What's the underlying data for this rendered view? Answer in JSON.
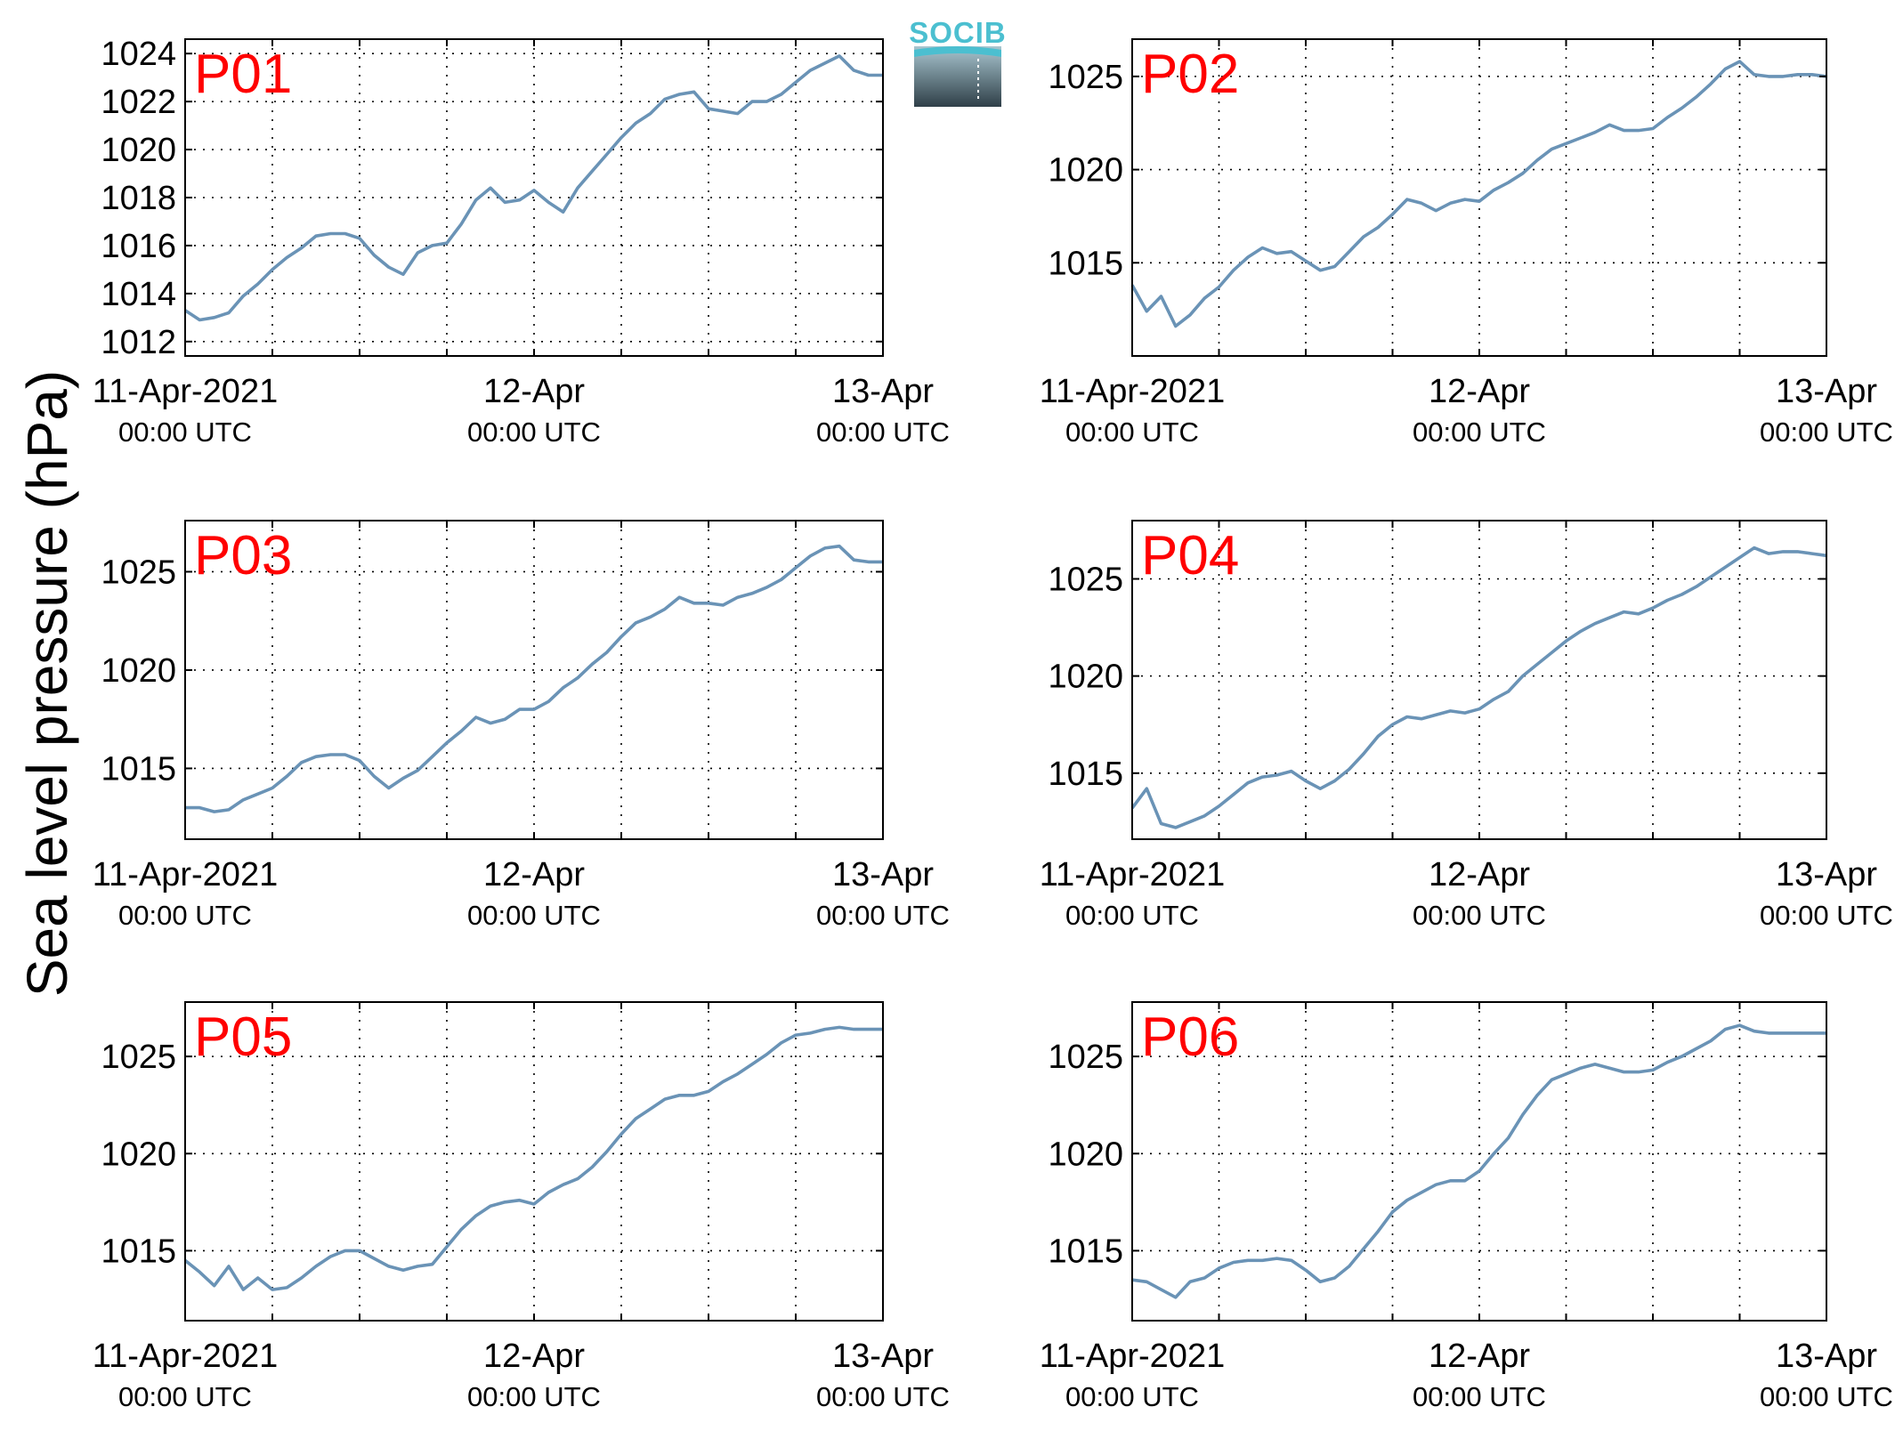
{
  "figure": {
    "ylabel": "Sea level pressure (hPa)",
    "logo_text": "SOCIB",
    "line_color": "#6a93b6",
    "label_color": "#ff0000"
  },
  "chart_data": [
    {
      "type": "line",
      "label": "P01",
      "xlim": [
        "11-Apr-2021 00:00",
        "13-Apr-2021 00:00"
      ],
      "xticks": [
        {
          "line1": "11-Apr-2021",
          "line2": "00:00 UTC"
        },
        {
          "line1": "12-Apr",
          "line2": "00:00 UTC"
        },
        {
          "line1": "13-Apr",
          "line2": "00:00 UTC"
        }
      ],
      "ylim": [
        1011.4,
        1024.6
      ],
      "yticks": [
        1012,
        1014,
        1016,
        1018,
        1020,
        1022,
        1024
      ],
      "grid": true,
      "time_hours": [
        0,
        1,
        2,
        3,
        4,
        5,
        6,
        7,
        8,
        9,
        10,
        11,
        12,
        13,
        14,
        15,
        16,
        17,
        18,
        19,
        20,
        21,
        22,
        23,
        24,
        25,
        26,
        27,
        28,
        29,
        30,
        31,
        32,
        33,
        34,
        35,
        36,
        37,
        38,
        39,
        40,
        41,
        42,
        43,
        44,
        45,
        46,
        47,
        48
      ],
      "values": [
        1013.3,
        1012.9,
        1013.0,
        1013.2,
        1013.9,
        1014.4,
        1015.0,
        1015.5,
        1015.9,
        1016.4,
        1016.5,
        1016.5,
        1016.3,
        1015.6,
        1015.1,
        1014.8,
        1015.7,
        1016.0,
        1016.1,
        1016.9,
        1017.9,
        1018.4,
        1017.8,
        1017.9,
        1018.3,
        1017.8,
        1017.4,
        1018.4,
        1019.1,
        1019.8,
        1020.5,
        1021.1,
        1021.5,
        1022.1,
        1022.3,
        1022.4,
        1021.7,
        1021.6,
        1021.5,
        1022.0,
        1022.0,
        1022.3,
        1022.8,
        1023.3,
        1023.6,
        1023.9,
        1023.3,
        1023.1,
        1023.1
      ]
    },
    {
      "type": "line",
      "label": "P02",
      "xlim": [
        "11-Apr-2021 00:00",
        "13-Apr-2021 00:00"
      ],
      "xticks": [
        {
          "line1": "11-Apr-2021",
          "line2": "00:00 UTC"
        },
        {
          "line1": "12-Apr",
          "line2": "00:00 UTC"
        },
        {
          "line1": "13-Apr",
          "line2": "00:00 UTC"
        }
      ],
      "ylim": [
        1010,
        1027
      ],
      "yticks": [
        1015,
        1020,
        1025
      ],
      "grid": true,
      "time_hours": [
        0,
        1,
        2,
        3,
        4,
        5,
        6,
        7,
        8,
        9,
        10,
        11,
        12,
        13,
        14,
        15,
        16,
        17,
        18,
        19,
        20,
        21,
        22,
        23,
        24,
        25,
        26,
        27,
        28,
        29,
        30,
        31,
        32,
        33,
        34,
        35,
        36,
        37,
        38,
        39,
        40,
        41,
        42,
        43,
        44,
        45,
        46,
        47,
        48
      ],
      "values": [
        1013.8,
        1012.4,
        1013.2,
        1011.6,
        1012.2,
        1013.1,
        1013.7,
        1014.6,
        1015.3,
        1015.8,
        1015.5,
        1015.6,
        1015.1,
        1014.6,
        1014.8,
        1015.6,
        1016.4,
        1016.9,
        1017.6,
        1018.4,
        1018.2,
        1017.8,
        1018.2,
        1018.4,
        1018.3,
        1018.9,
        1019.3,
        1019.8,
        1020.5,
        1021.1,
        1021.4,
        1021.7,
        1022.0,
        1022.4,
        1022.1,
        1022.1,
        1022.2,
        1022.8,
        1023.3,
        1023.9,
        1024.6,
        1025.4,
        1025.8,
        1025.1,
        1025.0,
        1025.0,
        1025.1,
        1025.1,
        1025.0
      ]
    },
    {
      "type": "line",
      "label": "P03",
      "xlim": [
        "11-Apr-2021 00:00",
        "13-Apr-2021 00:00"
      ],
      "xticks": [
        {
          "line1": "11-Apr-2021",
          "line2": "00:00 UTC"
        },
        {
          "line1": "12-Apr",
          "line2": "00:00 UTC"
        },
        {
          "line1": "13-Apr",
          "line2": "00:00 UTC"
        }
      ],
      "ylim": [
        1011.4,
        1027.6
      ],
      "yticks": [
        1015,
        1020,
        1025
      ],
      "grid": true,
      "time_hours": [
        0,
        1,
        2,
        3,
        4,
        5,
        6,
        7,
        8,
        9,
        10,
        11,
        12,
        13,
        14,
        15,
        16,
        17,
        18,
        19,
        20,
        21,
        22,
        23,
        24,
        25,
        26,
        27,
        28,
        29,
        30,
        31,
        32,
        33,
        34,
        35,
        36,
        37,
        38,
        39,
        40,
        41,
        42,
        43,
        44,
        45,
        46,
        47,
        48
      ],
      "values": [
        1013.0,
        1013.0,
        1012.8,
        1012.9,
        1013.4,
        1013.7,
        1014.0,
        1014.6,
        1015.3,
        1015.6,
        1015.7,
        1015.7,
        1015.4,
        1014.6,
        1014.0,
        1014.5,
        1014.9,
        1015.6,
        1016.3,
        1016.9,
        1017.6,
        1017.3,
        1017.5,
        1018.0,
        1018.0,
        1018.4,
        1019.1,
        1019.6,
        1020.3,
        1020.9,
        1021.7,
        1022.4,
        1022.7,
        1023.1,
        1023.7,
        1023.4,
        1023.4,
        1023.3,
        1023.7,
        1023.9,
        1024.2,
        1024.6,
        1025.2,
        1025.8,
        1026.2,
        1026.3,
        1025.6,
        1025.5,
        1025.5
      ]
    },
    {
      "type": "line",
      "label": "P04",
      "xlim": [
        "11-Apr-2021 00:00",
        "13-Apr-2021 00:00"
      ],
      "xticks": [
        {
          "line1": "11-Apr-2021",
          "line2": "00:00 UTC"
        },
        {
          "line1": "12-Apr",
          "line2": "00:00 UTC"
        },
        {
          "line1": "13-Apr",
          "line2": "00:00 UTC"
        }
      ],
      "ylim": [
        1011.6,
        1028
      ],
      "yticks": [
        1015,
        1020,
        1025
      ],
      "grid": true,
      "time_hours": [
        0,
        1,
        2,
        3,
        4,
        5,
        6,
        7,
        8,
        9,
        10,
        11,
        12,
        13,
        14,
        15,
        16,
        17,
        18,
        19,
        20,
        21,
        22,
        23,
        24,
        25,
        26,
        27,
        28,
        29,
        30,
        31,
        32,
        33,
        34,
        35,
        36,
        37,
        38,
        39,
        40,
        41,
        42,
        43,
        44,
        45,
        46,
        47,
        48
      ],
      "values": [
        1013.2,
        1014.2,
        1012.4,
        1012.2,
        1012.5,
        1012.8,
        1013.3,
        1013.9,
        1014.5,
        1014.8,
        1014.9,
        1015.1,
        1014.6,
        1014.2,
        1014.6,
        1015.2,
        1016.0,
        1016.9,
        1017.5,
        1017.9,
        1017.8,
        1018.0,
        1018.2,
        1018.1,
        1018.3,
        1018.8,
        1019.2,
        1020.0,
        1020.6,
        1021.2,
        1021.8,
        1022.3,
        1022.7,
        1023.0,
        1023.3,
        1023.2,
        1023.5,
        1023.9,
        1024.2,
        1024.6,
        1025.1,
        1025.6,
        1026.1,
        1026.6,
        1026.3,
        1026.4,
        1026.4,
        1026.3,
        1026.2
      ]
    },
    {
      "type": "line",
      "label": "P05",
      "xlim": [
        "11-Apr-2021 00:00",
        "13-Apr-2021 00:00"
      ],
      "xticks": [
        {
          "line1": "11-Apr-2021",
          "line2": "00:00 UTC"
        },
        {
          "line1": "12-Apr",
          "line2": "00:00 UTC"
        },
        {
          "line1": "13-Apr",
          "line2": "00:00 UTC"
        }
      ],
      "ylim": [
        1011.4,
        1027.8
      ],
      "yticks": [
        1015,
        1020,
        1025
      ],
      "grid": true,
      "time_hours": [
        0,
        1,
        2,
        3,
        4,
        5,
        6,
        7,
        8,
        9,
        10,
        11,
        12,
        13,
        14,
        15,
        16,
        17,
        18,
        19,
        20,
        21,
        22,
        23,
        24,
        25,
        26,
        27,
        28,
        29,
        30,
        31,
        32,
        33,
        34,
        35,
        36,
        37,
        38,
        39,
        40,
        41,
        42,
        43,
        44,
        45,
        46,
        47,
        48
      ],
      "values": [
        1014.5,
        1013.9,
        1013.2,
        1014.2,
        1013.0,
        1013.6,
        1013.0,
        1013.1,
        1013.6,
        1014.2,
        1014.7,
        1015.0,
        1015.0,
        1014.6,
        1014.2,
        1014.0,
        1014.2,
        1014.3,
        1015.2,
        1016.1,
        1016.8,
        1017.3,
        1017.5,
        1017.6,
        1017.4,
        1018.0,
        1018.4,
        1018.7,
        1019.3,
        1020.1,
        1021.0,
        1021.8,
        1022.3,
        1022.8,
        1023.0,
        1023.0,
        1023.2,
        1023.7,
        1024.1,
        1024.6,
        1025.1,
        1025.7,
        1026.1,
        1026.2,
        1026.4,
        1026.5,
        1026.4,
        1026.4,
        1026.4
      ]
    },
    {
      "type": "line",
      "label": "P06",
      "xlim": [
        "11-Apr-2021 00:00",
        "13-Apr-2021 00:00"
      ],
      "xticks": [
        {
          "line1": "11-Apr-2021",
          "line2": "00:00 UTC"
        },
        {
          "line1": "12-Apr",
          "line2": "00:00 UTC"
        },
        {
          "line1": "13-Apr",
          "line2": "00:00 UTC"
        }
      ],
      "ylim": [
        1011.4,
        1027.8
      ],
      "yticks": [
        1015,
        1020,
        1025
      ],
      "grid": true,
      "time_hours": [
        0,
        1,
        2,
        3,
        4,
        5,
        6,
        7,
        8,
        9,
        10,
        11,
        12,
        13,
        14,
        15,
        16,
        17,
        18,
        19,
        20,
        21,
        22,
        23,
        24,
        25,
        26,
        27,
        28,
        29,
        30,
        31,
        32,
        33,
        34,
        35,
        36,
        37,
        38,
        39,
        40,
        41,
        42,
        43,
        44,
        45,
        46,
        47,
        48
      ],
      "values": [
        1013.5,
        1013.4,
        1013.0,
        1012.6,
        1013.4,
        1013.6,
        1014.1,
        1014.4,
        1014.5,
        1014.5,
        1014.6,
        1014.5,
        1014.0,
        1013.4,
        1013.6,
        1014.2,
        1015.1,
        1016.0,
        1017.0,
        1017.6,
        1018.0,
        1018.4,
        1018.6,
        1018.6,
        1019.1,
        1020.0,
        1020.8,
        1022.0,
        1023.0,
        1023.8,
        1024.1,
        1024.4,
        1024.6,
        1024.4,
        1024.2,
        1024.2,
        1024.3,
        1024.7,
        1025.0,
        1025.4,
        1025.8,
        1026.4,
        1026.6,
        1026.3,
        1026.2,
        1026.2,
        1026.2,
        1026.2,
        1026.2
      ]
    }
  ]
}
